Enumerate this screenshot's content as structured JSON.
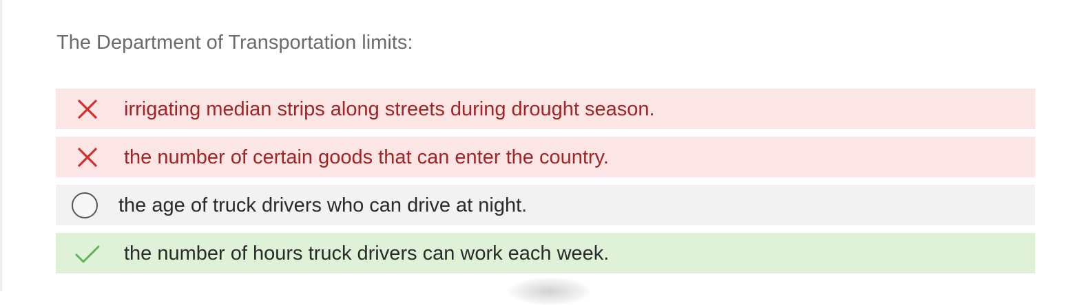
{
  "question": {
    "text": "The Department of Transportation limits:"
  },
  "options": [
    {
      "label": "irrigating median strips along streets during drought season.",
      "state": "incorrect",
      "icon": "x-icon"
    },
    {
      "label": "the number of certain goods that can enter the country.",
      "state": "incorrect",
      "icon": "x-icon"
    },
    {
      "label": "the age of truck drivers who can drive at night.",
      "state": "unselected",
      "icon": "radio-circle-icon"
    },
    {
      "label": "the number of hours truck drivers can work each week.",
      "state": "correct",
      "icon": "checkmark-icon"
    }
  ],
  "colors": {
    "incorrect_bg": "#fbe5e5",
    "incorrect_text": "#a32424",
    "incorrect_icon": "#d32f2f",
    "neutral_bg": "#f2f2f2",
    "correct_bg": "#dff2d8",
    "correct_icon": "#5fb35a",
    "question_text": "#6b6b6b"
  }
}
